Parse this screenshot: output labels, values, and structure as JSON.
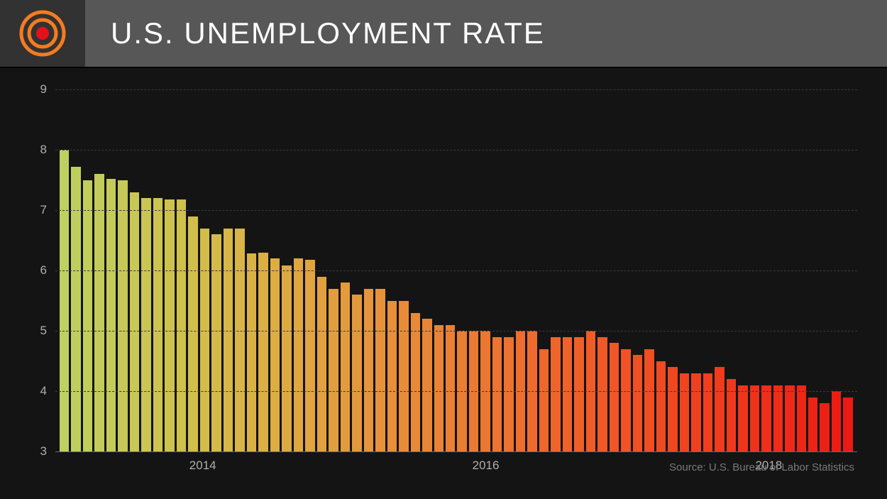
{
  "header": {
    "title": "U.S. UNEMPLOYMENT RATE"
  },
  "chart": {
    "type": "bar",
    "ylim": [
      3,
      9
    ],
    "yticks": [
      3,
      4,
      5,
      6,
      7,
      8,
      9
    ],
    "xticks": [
      {
        "label": "2014",
        "index": 12
      },
      {
        "label": "2016",
        "index": 36
      },
      {
        "label": "2018",
        "index": 60
      }
    ],
    "values": [
      8.0,
      7.72,
      7.5,
      7.6,
      7.52,
      7.5,
      7.3,
      7.2,
      7.2,
      7.18,
      7.18,
      6.9,
      6.7,
      6.6,
      6.7,
      6.7,
      6.28,
      6.3,
      6.2,
      6.08,
      6.2,
      6.18,
      5.9,
      5.7,
      5.8,
      5.6,
      5.7,
      5.7,
      5.5,
      5.5,
      5.3,
      5.2,
      5.1,
      5.1,
      5.0,
      5.0,
      5.0,
      4.9,
      4.9,
      5.0,
      5.0,
      4.7,
      4.9,
      4.9,
      4.9,
      5.0,
      4.9,
      4.8,
      4.7,
      4.6,
      4.7,
      4.5,
      4.4,
      4.3,
      4.3,
      4.3,
      4.4,
      4.2,
      4.1,
      4.1,
      4.1,
      4.1,
      4.1,
      4.1,
      3.9,
      3.8,
      4.0,
      3.9
    ],
    "bar_colors": [
      "#bed05f",
      "#bfcf5e",
      "#c1ce5c",
      "#c3cc5a",
      "#c5cb58",
      "#c7c956",
      "#c9c854",
      "#cbc652",
      "#cdc450",
      "#cec24e",
      "#d0c04c",
      "#d2be4a",
      "#d3bc49",
      "#d5ba48",
      "#d6b747",
      "#d8b546",
      "#d9b245",
      "#dbaf44",
      "#dcad43",
      "#ddaa42",
      "#dea741",
      "#e0a440",
      "#e1a13f",
      "#e29e3e",
      "#e39b3d",
      "#e4983c",
      "#e5953b",
      "#e6923a",
      "#e78f39",
      "#e88c38",
      "#e88937",
      "#e98636",
      "#ea8335",
      "#ea8034",
      "#eb7d33",
      "#eb7a32",
      "#ec7731",
      "#ec7430",
      "#ed712f",
      "#ed6e2e",
      "#ee6b2d",
      "#ee682c",
      "#ee652b",
      "#ef622a",
      "#ef5f29",
      "#ef5c28",
      "#f05927",
      "#f05626",
      "#f05325",
      "#f05024",
      "#f04d23",
      "#f04a22",
      "#f04721",
      "#f04420",
      "#f0411f",
      "#f03e1e",
      "#f03b1d",
      "#ef381c",
      "#ef351b",
      "#ef321a",
      "#ef2f19",
      "#ee2c18",
      "#ee2917",
      "#ee2616",
      "#ed2315",
      "#ed2014",
      "#ed1d13",
      "#ec1a12"
    ],
    "background_color": "#141414",
    "grid_color": "#3a3a3a",
    "axis_text_color": "#b0b0b0",
    "label_fontsize": 17,
    "source_text": "Source: U.S. Bureau of Labor Statistics",
    "source_color": "#7a7a7a"
  }
}
